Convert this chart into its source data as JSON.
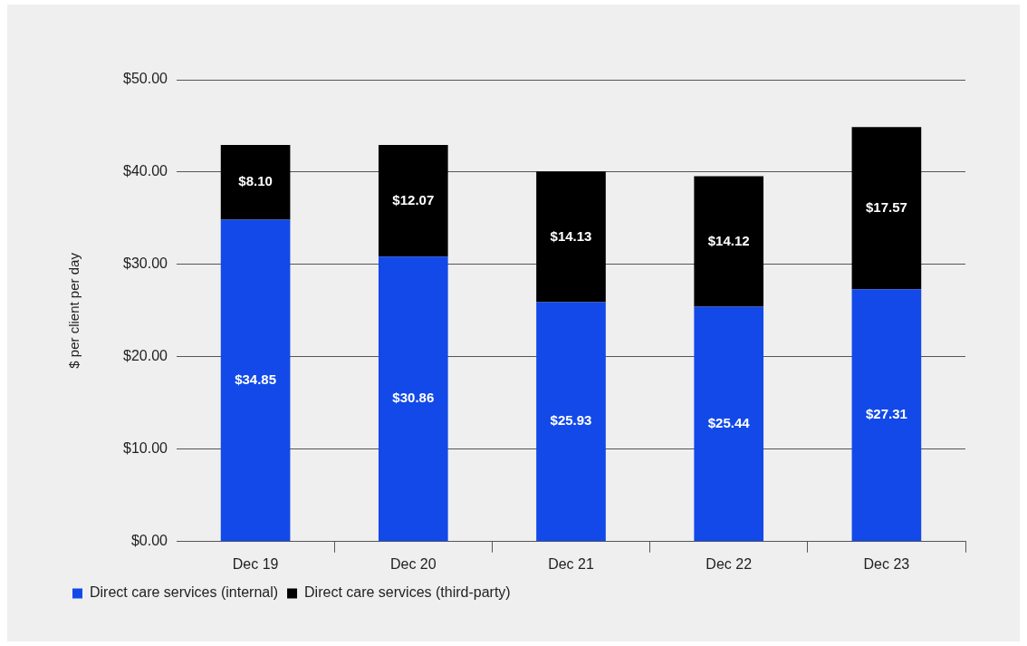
{
  "chart_data": {
    "type": "bar",
    "stacked": true,
    "ylabel": "$ per client per day",
    "categories": [
      "Dec 19",
      "Dec 20",
      "Dec 21",
      "Dec 22",
      "Dec 23"
    ],
    "series": [
      {
        "name": "Direct care services (internal)",
        "color": "#1249e8",
        "values": [
          34.85,
          30.86,
          25.93,
          25.44,
          27.31
        ],
        "value_labels": [
          "$34.85",
          "$30.86",
          "$25.93",
          "$25.44",
          "$27.31"
        ]
      },
      {
        "name": "Direct care services (third-party)",
        "color": "#000000",
        "values": [
          8.1,
          12.07,
          14.13,
          14.12,
          17.57
        ],
        "value_labels": [
          "$8.10",
          "$12.07",
          "$14.13",
          "$14.12",
          "$17.57"
        ]
      }
    ],
    "ylim": [
      0,
      50
    ],
    "yticks": [
      {
        "value": 0,
        "label": "$0.00"
      },
      {
        "value": 10,
        "label": "$10.00"
      },
      {
        "value": 20,
        "label": "$20.00"
      },
      {
        "value": 30,
        "label": "$30.00"
      },
      {
        "value": 40,
        "label": "$40.00"
      },
      {
        "value": 50,
        "label": "$50.00"
      }
    ],
    "grid": "y",
    "legend": "bottom left"
  }
}
